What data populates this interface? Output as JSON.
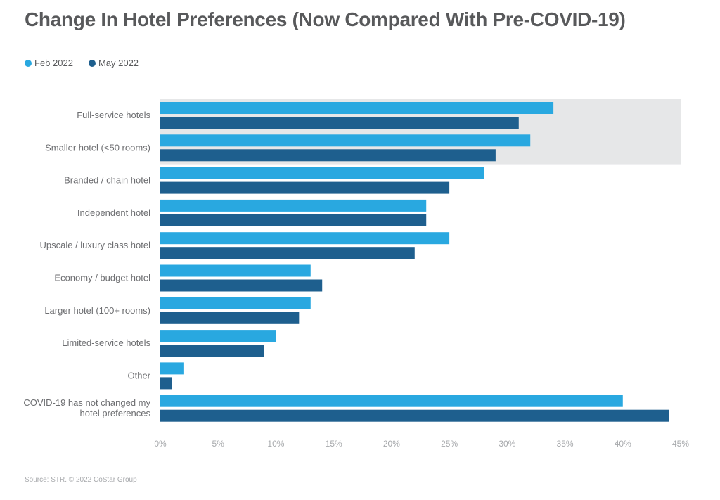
{
  "header": {
    "title": "Change In Hotel Preferences (Now Compared With Pre-COVID-19)"
  },
  "footer": {
    "source": "Source: STR. © 2022 CoStar Group"
  },
  "colors": {
    "series1": "#29a8e0",
    "series2": "#1e5f8e",
    "highlight": "#e6e7e8"
  },
  "chart_data": {
    "type": "bar",
    "orientation": "horizontal",
    "title": "Change In Hotel Preferences (Now Compared With Pre-COVID-19)",
    "categories": [
      [
        "Full-service hotels"
      ],
      [
        "Smaller hotel (<50 rooms)"
      ],
      [
        "Branded / chain hotel"
      ],
      [
        "Independent hotel"
      ],
      [
        "Upscale / luxury class hotel"
      ],
      [
        "Economy / budget hotel"
      ],
      [
        "Larger hotel (100+ rooms)"
      ],
      [
        "Limited-service hotels"
      ],
      [
        "Other"
      ],
      [
        "COVID-19 has not changed my",
        "hotel preferences"
      ]
    ],
    "series": [
      {
        "name": "Feb 2022",
        "values": [
          34,
          32,
          28,
          23,
          25,
          13,
          13,
          10,
          2,
          40
        ]
      },
      {
        "name": "May 2022",
        "values": [
          31,
          29,
          25,
          23,
          22,
          14,
          12,
          9,
          1,
          44
        ]
      }
    ],
    "xlim": [
      0,
      45
    ],
    "xticks": [
      0,
      5,
      10,
      15,
      20,
      25,
      30,
      35,
      40,
      45
    ],
    "tick_suffix": "%",
    "highlighted_categories": [
      0,
      1
    ],
    "legend_position": "top-left",
    "grid": false
  }
}
